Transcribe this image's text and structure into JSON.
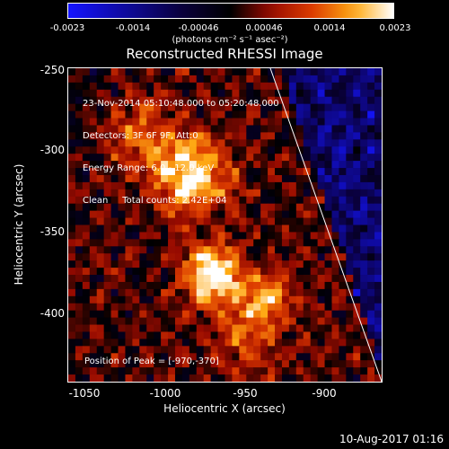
{
  "colorbar": {
    "tick_labels": [
      "-0.0023",
      "-0.0014",
      "-0.00046",
      "0.00046",
      "0.0014",
      "0.0023"
    ],
    "units_label": "(photons cm⁻² s⁻¹ asec⁻²)",
    "range": [
      -0.0023,
      0.0023
    ]
  },
  "image": {
    "title": "Reconstructed RHESSI Image",
    "info_lines": [
      "23-Nov-2014 05:10:48.000 to 05:20:48.000",
      "Detectors: 3F 6F 9F, Att:0",
      "Energy Range: 6.0 - 12.0 keV",
      "Clean     Total counts: 2.42E+04"
    ],
    "peak_label": "Position of Peak = [-970,-370]",
    "xlabel": "Heliocentric X (arcsec)",
    "ylabel": "Heliocentric Y (arcsec)",
    "x_ticks": [
      "-1050",
      "-1000",
      "-950",
      "-900"
    ],
    "y_ticks": [
      "-250",
      "-300",
      "-350",
      "-400"
    ],
    "x_range": [
      -1060,
      -867
    ],
    "y_range": [
      -443,
      -250
    ]
  },
  "footer": {
    "timestamp": "10-Aug-2017 01:16"
  }
}
